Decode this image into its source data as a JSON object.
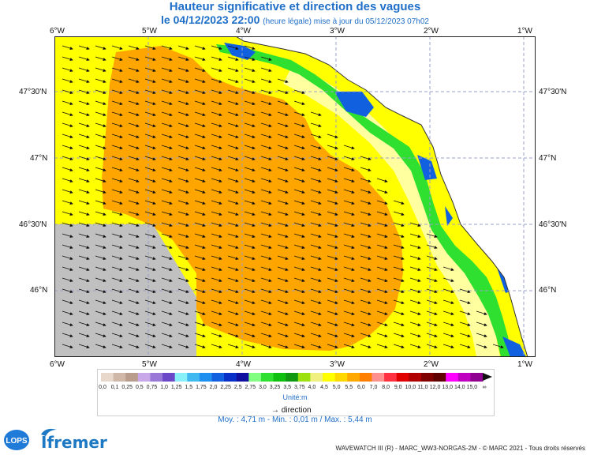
{
  "title": "Hauteur significative et direction des vagues",
  "date": "le 04/12/2023 22:00",
  "subtitle": "(heure légale) mise à jour du 05/12/2023 07h02",
  "lon_labels": [
    "6°W",
    "5°W",
    "4°W",
    "3°W",
    "2°W",
    "1°W"
  ],
  "lat_labels": [
    "47°30'N",
    "47°N",
    "46°30'N",
    "46°N"
  ],
  "legend": {
    "ticks": [
      "0,0",
      "0,1",
      "0,25",
      "0,5",
      "0,75",
      "1,0",
      "1,25",
      "1,5",
      "1,75",
      "2,0",
      "2,25",
      "2,5",
      "2,75",
      "3,0",
      "3,25",
      "3,5",
      "3,75",
      "4,0",
      "4,5",
      "5,0",
      "5,5",
      "6,0",
      "7,0",
      "8,0",
      "9,0",
      "10,0",
      "11,0",
      "12,0",
      "13,0",
      "14,0",
      "15,0",
      "∞"
    ],
    "colors": [
      "#e8d8cc",
      "#cfb8a8",
      "#b99c8c",
      "#c8a8e8",
      "#9a78d8",
      "#6a48c8",
      "#88f0f8",
      "#40b8f0",
      "#2090f0",
      "#1060e0",
      "#0830c8",
      "#1010a0",
      "#80ff80",
      "#30e030",
      "#10c010",
      "#109810",
      "#9ce010",
      "#f0f080",
      "#ffff00",
      "#ffd800",
      "#ffa800",
      "#ff8000",
      "#ff9090",
      "#ff3040",
      "#e00000",
      "#b00000",
      "#800000",
      "#600000",
      "#ff00ff",
      "#c000c0",
      "#900090"
    ],
    "unit": "Unité:m",
    "direction_label": "direction"
  },
  "stats": "Moy. : 4,71 m   -   Min. : 0,01 m / Max. : 5,44 m",
  "footer": "WAVEWATCH III (R) - MARC_WW3-NORGAS-2M - © MARC 2021 - Tous droits réservés",
  "logo_text": "Ifremer",
  "logo_lops": "LOPS",
  "map": {
    "colors": {
      "orange": "#ffa500",
      "yellow": "#ffff00",
      "pale_yellow": "#ffffa0",
      "gray": "#c0c0c0",
      "land": "#ffffff",
      "grid": "#9aa0c8"
    }
  }
}
